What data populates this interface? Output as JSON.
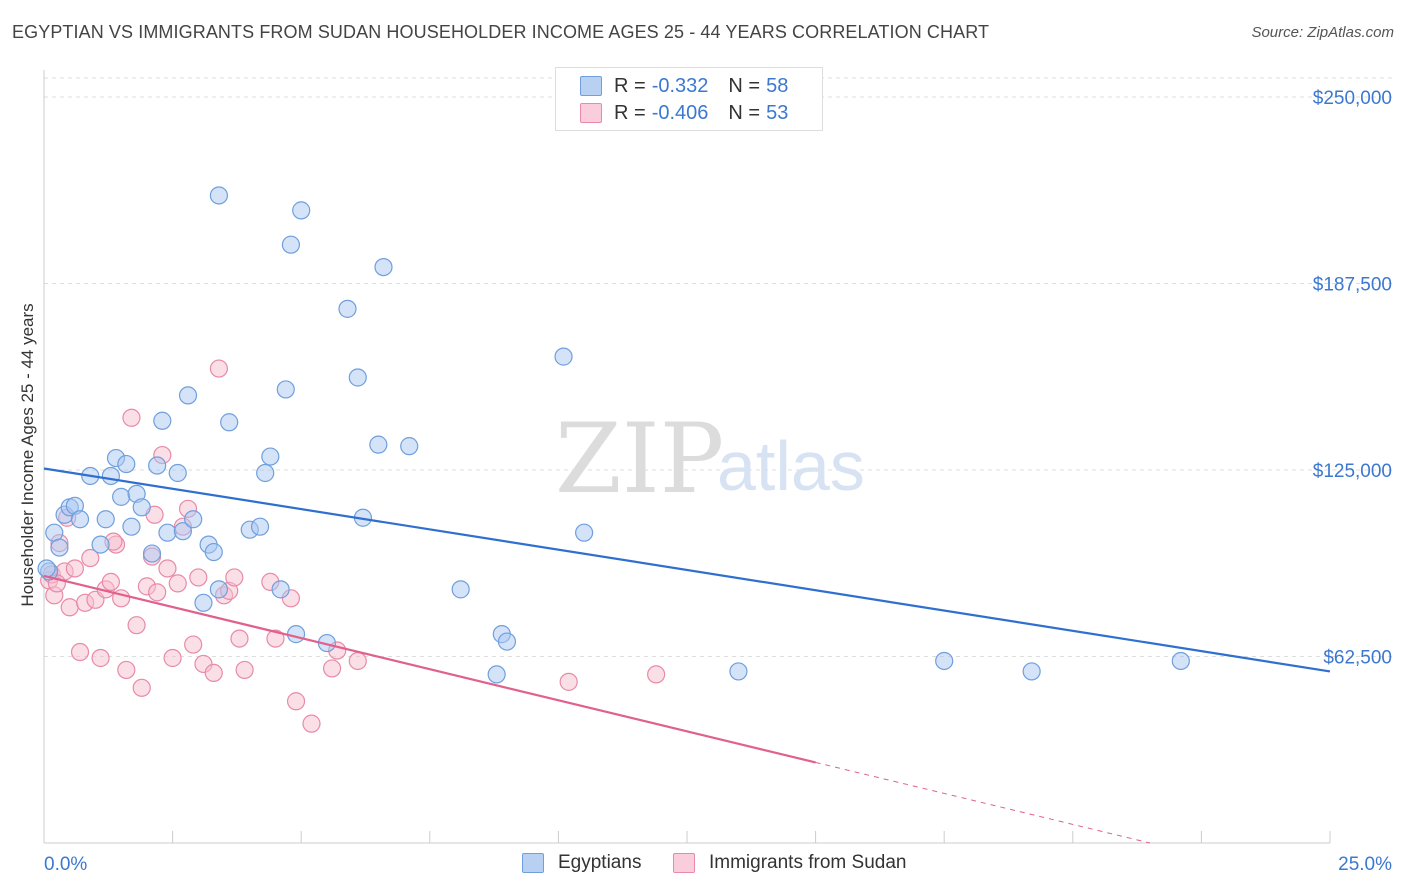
{
  "title": "EGYPTIAN VS IMMIGRANTS FROM SUDAN HOUSEHOLDER INCOME AGES 25 - 44 YEARS CORRELATION CHART",
  "source": "Source: ZipAtlas.com",
  "watermark": {
    "zip": "ZIP",
    "atlas": "atlas"
  },
  "colors": {
    "egyptians_fill": "#a9c8f2",
    "egyptians_stroke": "#6f9fdd",
    "egyptians_line": "#2f6fcf",
    "sudan_fill": "#f7bfd0",
    "sudan_stroke": "#e88aa8",
    "sudan_line": "#e0608e",
    "axis_label": "#3c78d0",
    "grid": "#dddddd"
  },
  "legend_top": {
    "rows": [
      {
        "r_label": "R =",
        "r_value": "-0.332",
        "n_label": "N =",
        "n_value": "58"
      },
      {
        "r_label": "R =",
        "r_value": "-0.406",
        "n_label": "N =",
        "n_value": "53"
      }
    ]
  },
  "legend_bottom": {
    "items": [
      "Egyptians",
      "Immigrants from Sudan"
    ]
  },
  "chart_data": {
    "type": "scatter",
    "title": "EGYPTIAN VS IMMIGRANTS FROM SUDAN HOUSEHOLDER INCOME AGES 25 - 44 YEARS CORRELATION CHART",
    "xlabel": "",
    "ylabel": "Householder Income Ages 25 - 44 years",
    "xlim": [
      0,
      25
    ],
    "ylim": [
      0,
      260000
    ],
    "x_tick_labels": [
      "0.0%",
      "25.0%"
    ],
    "y_ticks": [
      62500,
      125000,
      187500,
      250000
    ],
    "y_tick_labels": [
      "$62,500",
      "$125,000",
      "$187,500",
      "$250,000"
    ],
    "grid": "horizontal dashed",
    "legend_position": "top-center",
    "series": [
      {
        "name": "Egyptians",
        "r": -0.332,
        "n": 58,
        "trend": {
          "x": [
            0,
            25
          ],
          "y": [
            125500,
            57500
          ]
        },
        "points": [
          [
            0.1,
            91000
          ],
          [
            0.2,
            104000
          ],
          [
            0.3,
            99000
          ],
          [
            0.4,
            110000
          ],
          [
            0.5,
            112500
          ],
          [
            0.6,
            113000
          ],
          [
            0.7,
            108500
          ],
          [
            0.9,
            123000
          ],
          [
            1.1,
            100000
          ],
          [
            1.2,
            108500
          ],
          [
            1.3,
            123000
          ],
          [
            1.4,
            129000
          ],
          [
            1.5,
            116000
          ],
          [
            1.6,
            127000
          ],
          [
            1.7,
            106000
          ],
          [
            1.8,
            117000
          ],
          [
            1.9,
            112500
          ],
          [
            2.1,
            97000
          ],
          [
            2.2,
            126500
          ],
          [
            2.3,
            141500
          ],
          [
            2.4,
            104000
          ],
          [
            2.6,
            124000
          ],
          [
            2.7,
            104500
          ],
          [
            2.8,
            150000
          ],
          [
            2.9,
            108500
          ],
          [
            3.1,
            80500
          ],
          [
            3.2,
            100000
          ],
          [
            3.3,
            97500
          ],
          [
            3.4,
            85000
          ],
          [
            3.4,
            217000
          ],
          [
            3.6,
            141000
          ],
          [
            4.0,
            105000
          ],
          [
            4.2,
            106000
          ],
          [
            4.3,
            124000
          ],
          [
            4.4,
            129500
          ],
          [
            4.6,
            85000
          ],
          [
            4.7,
            152000
          ],
          [
            4.8,
            200500
          ],
          [
            4.9,
            70000
          ],
          [
            5.0,
            212000
          ],
          [
            5.5,
            67000
          ],
          [
            5.9,
            179000
          ],
          [
            6.1,
            156000
          ],
          [
            6.2,
            109000
          ],
          [
            6.6,
            193000
          ],
          [
            6.5,
            133500
          ],
          [
            7.1,
            133000
          ],
          [
            8.1,
            85000
          ],
          [
            8.8,
            56500
          ],
          [
            8.9,
            70000
          ],
          [
            9.0,
            67500
          ],
          [
            10.1,
            163000
          ],
          [
            10.5,
            104000
          ],
          [
            13.5,
            57500
          ],
          [
            17.5,
            61000
          ],
          [
            19.2,
            57500
          ],
          [
            22.1,
            61000
          ],
          [
            0.05,
            92000
          ]
        ]
      },
      {
        "name": "Immigrants from Sudan",
        "r": -0.406,
        "n": 53,
        "trend": {
          "x": [
            0,
            15
          ],
          "y": [
            89500,
            27000
          ]
        },
        "trend_dashed": {
          "x": [
            15,
            21.5
          ],
          "y": [
            27000,
            0
          ]
        },
        "points": [
          [
            0.1,
            88000
          ],
          [
            0.15,
            90000
          ],
          [
            0.2,
            83000
          ],
          [
            0.3,
            100500
          ],
          [
            0.4,
            91000
          ],
          [
            0.5,
            79000
          ],
          [
            0.6,
            92000
          ],
          [
            0.7,
            64000
          ],
          [
            0.8,
            80500
          ],
          [
            0.9,
            95500
          ],
          [
            1.0,
            81500
          ],
          [
            1.1,
            62000
          ],
          [
            1.2,
            85000
          ],
          [
            1.3,
            87500
          ],
          [
            1.4,
            100000
          ],
          [
            1.5,
            82000
          ],
          [
            1.6,
            58000
          ],
          [
            1.7,
            142500
          ],
          [
            1.8,
            73000
          ],
          [
            1.9,
            52000
          ],
          [
            2.0,
            86000
          ],
          [
            2.1,
            96000
          ],
          [
            2.2,
            84000
          ],
          [
            2.3,
            130000
          ],
          [
            2.4,
            92000
          ],
          [
            2.5,
            62000
          ],
          [
            2.6,
            87000
          ],
          [
            2.7,
            106000
          ],
          [
            2.8,
            112000
          ],
          [
            2.9,
            66500
          ],
          [
            3.0,
            89000
          ],
          [
            3.1,
            60000
          ],
          [
            3.3,
            57000
          ],
          [
            3.4,
            159000
          ],
          [
            3.5,
            83000
          ],
          [
            3.6,
            84500
          ],
          [
            3.7,
            89000
          ],
          [
            3.8,
            68500
          ],
          [
            3.9,
            58000
          ],
          [
            4.4,
            87500
          ],
          [
            4.5,
            68500
          ],
          [
            4.8,
            82000
          ],
          [
            4.9,
            47500
          ],
          [
            5.2,
            40000
          ],
          [
            5.6,
            58500
          ],
          [
            5.7,
            64500
          ],
          [
            6.1,
            61000
          ],
          [
            10.2,
            54000
          ],
          [
            11.9,
            56500
          ],
          [
            0.25,
            87000
          ],
          [
            1.35,
            101000
          ],
          [
            2.15,
            110000
          ],
          [
            0.45,
            109000
          ]
        ]
      }
    ]
  }
}
